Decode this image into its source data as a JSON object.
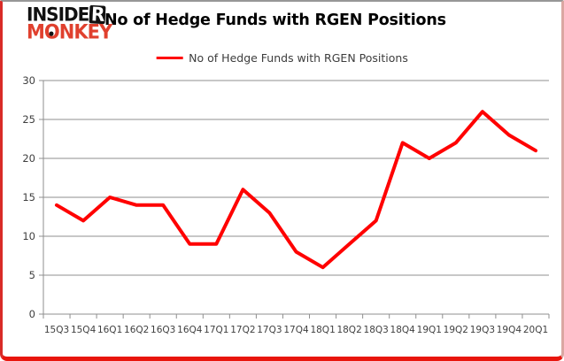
{
  "logo": {
    "line1_main": "INSIDE",
    "line1_r": "R",
    "line2_m": "M",
    "line2_o": "O",
    "line2_rest": "NKEY",
    "accent_color": "#e0402e"
  },
  "title": "No of Hedge Funds with RGEN Positions",
  "legend": {
    "label": "No of Hedge Funds with RGEN Positions",
    "line_color": "#ff0000"
  },
  "chart_data": {
    "type": "line",
    "title": "No of Hedge Funds with RGEN Positions",
    "series_name": "No of Hedge Funds with RGEN Positions",
    "categories": [
      "15Q3",
      "15Q4",
      "16Q1",
      "16Q2",
      "16Q3",
      "16Q4",
      "17Q1",
      "17Q2",
      "17Q3",
      "17Q4",
      "18Q1",
      "18Q2",
      "18Q3",
      "18Q4",
      "19Q1",
      "19Q2",
      "19Q3",
      "19Q4",
      "20Q1"
    ],
    "values": [
      14,
      12,
      15,
      14,
      14,
      9,
      9,
      16,
      13,
      8,
      6,
      9,
      12,
      22,
      20,
      22,
      26,
      23,
      21
    ],
    "xlabel": "",
    "ylabel": "",
    "ylim": [
      0,
      30
    ],
    "y_ticks": [
      0,
      5,
      10,
      15,
      20,
      25,
      30
    ],
    "grid": true,
    "legend_position": "top-center",
    "line_color": "#ff0000",
    "gridline_color": "#8f8f8f",
    "tick_label_color": "#3f3f3f"
  }
}
